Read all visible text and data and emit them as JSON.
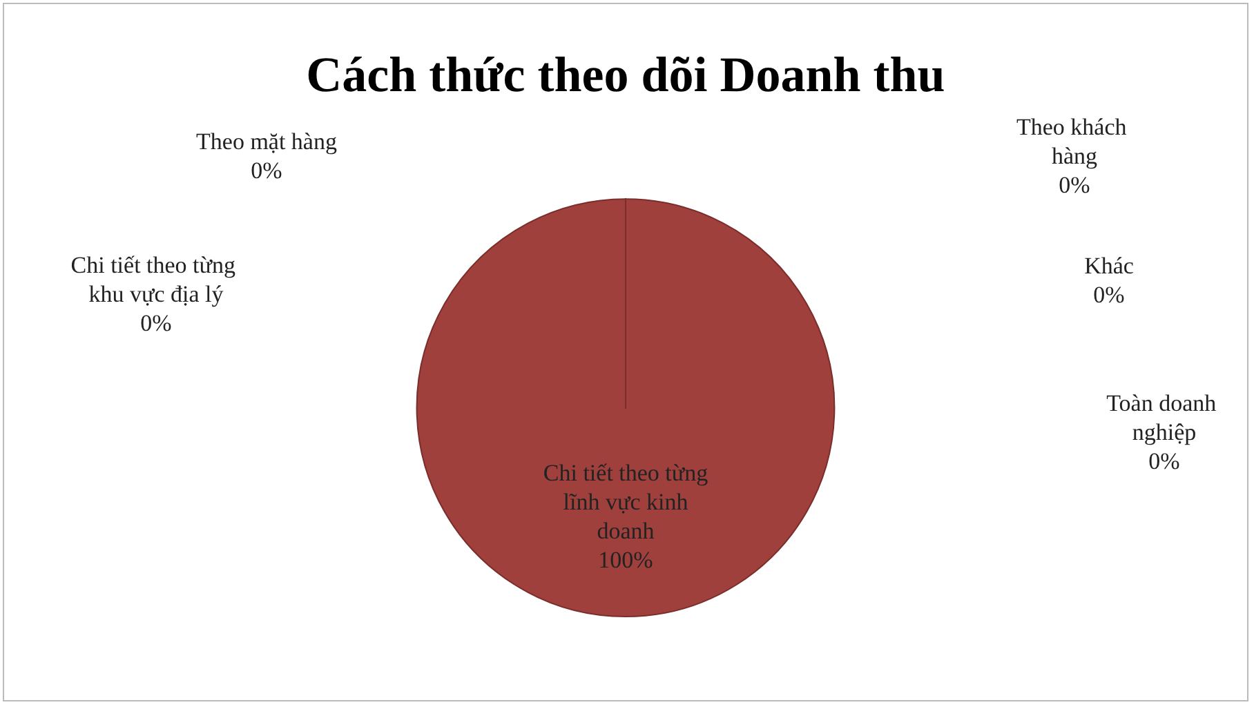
{
  "chart_data": {
    "type": "pie",
    "title": "Cách thức theo dõi Doanh thu",
    "categories": [
      "Chi tiết theo từng lĩnh vực kinh doanh",
      "Toàn doanh nghiệp",
      "Khác",
      "Theo khách hàng",
      "Theo mặt hàng",
      "Chi tiết theo từng khu vực địa lý"
    ],
    "values": [
      100,
      0,
      0,
      0,
      0,
      0
    ],
    "colors": [
      "#a0403d",
      "#4f81bd",
      "#9bbb59",
      "#8064a2",
      "#4bacc6",
      "#f79646"
    ],
    "value_labels": [
      "100%",
      "0%",
      "0%",
      "0%",
      "0%",
      "0%"
    ],
    "legend": false
  }
}
